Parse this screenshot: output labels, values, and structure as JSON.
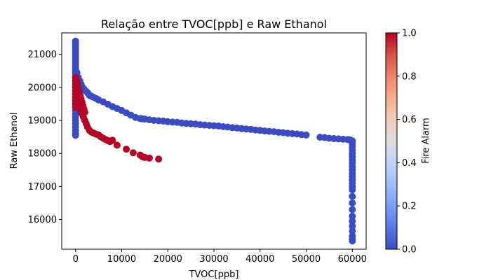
{
  "chart_data": {
    "type": "scatter",
    "title": "Relação entre TVOC[ppb] e Raw Ethanol",
    "xlabel": "TVOC[ppb]",
    "ylabel": "Raw Ethanol",
    "xlim": [
      -3000,
      63000
    ],
    "ylim": [
      15100,
      21650
    ],
    "x_ticks": [
      0,
      10000,
      20000,
      30000,
      40000,
      50000,
      60000
    ],
    "x_tick_labels": [
      "0",
      "10000",
      "20000",
      "30000",
      "40000",
      "50000",
      "60000"
    ],
    "y_ticks": [
      16000,
      17000,
      18000,
      19000,
      20000,
      21000
    ],
    "y_tick_labels": [
      "16000",
      "17000",
      "18000",
      "19000",
      "20000",
      "21000"
    ],
    "grid": false,
    "colorbar": {
      "label": "Fire Alarm",
      "range": [
        0,
        1
      ],
      "ticks": [
        0.0,
        0.2,
        0.4,
        0.6,
        0.8,
        1.0
      ],
      "tick_labels": [
        "0.0",
        "0.2",
        "0.4",
        "0.6",
        "0.8",
        "1.0"
      ],
      "colormap": "coolwarm",
      "low_color": "#3b4cc0",
      "high_color": "#b40426"
    },
    "series": [
      {
        "fire_alarm": 0,
        "color": "#3b4cc0",
        "x": [
          0,
          0,
          0,
          0,
          0,
          0,
          0,
          0,
          0,
          0,
          0,
          0,
          0,
          0,
          0,
          0,
          0,
          0,
          0,
          0,
          0,
          0,
          0,
          0,
          0,
          0,
          0,
          0,
          0,
          0,
          0,
          0,
          0,
          0,
          0,
          0,
          0,
          0,
          0,
          0,
          300,
          600,
          900,
          1200,
          1500,
          1800,
          2100,
          2400,
          2700,
          3000,
          3300,
          3600,
          3900,
          4500,
          5000,
          6000,
          7000,
          8000,
          9000,
          10000,
          11000,
          12000,
          13000,
          14000,
          14500,
          15000,
          16000,
          17000,
          18000,
          19000,
          20000,
          21000,
          22000,
          23000,
          24000,
          25000,
          26000,
          27000,
          28000,
          29000,
          30000,
          31000,
          32000,
          33000,
          34000,
          35000,
          36000,
          37000,
          38000,
          39000,
          40000,
          41000,
          42000,
          43000,
          44000,
          45000,
          46000,
          47000,
          48000,
          49000,
          50000,
          53000,
          54000,
          55000,
          56000,
          57000,
          58000,
          59000,
          59500,
          60000,
          60000,
          60000,
          60000,
          60000,
          60000,
          60000,
          60000,
          60000,
          60000,
          60000,
          60000,
          60000,
          60000,
          60000,
          60000,
          60000,
          60000,
          60000,
          60000,
          60000,
          60000,
          60000,
          60000,
          60000,
          60000
        ],
        "y": [
          21400,
          21300,
          21200,
          21100,
          21000,
          20900,
          20800,
          20700,
          20600,
          20500,
          20400,
          20300,
          20200,
          20100,
          20000,
          19900,
          19800,
          19700,
          19600,
          19500,
          19400,
          19300,
          19200,
          19100,
          19000,
          18900,
          18800,
          18700,
          18600,
          18550,
          21350,
          21250,
          21150,
          21050,
          20950,
          20850,
          20750,
          20650,
          20550,
          20450,
          20450,
          20300,
          20200,
          20100,
          20000,
          19950,
          19900,
          19870,
          19820,
          19760,
          19740,
          19720,
          19700,
          19660,
          19620,
          19560,
          19490,
          19420,
          19360,
          19300,
          19230,
          19160,
          19090,
          19060,
          19050,
          19040,
          19020,
          19000,
          18990,
          18980,
          18960,
          18950,
          18940,
          18920,
          18910,
          18900,
          18890,
          18870,
          18860,
          18850,
          18840,
          18830,
          18810,
          18800,
          18780,
          18770,
          18750,
          18740,
          18730,
          18710,
          18700,
          18680,
          18670,
          18660,
          18640,
          18630,
          18610,
          18600,
          18590,
          18570,
          18560,
          18490,
          18480,
          18460,
          18450,
          18440,
          18430,
          18420,
          18410,
          18380,
          18300,
          18100,
          17900,
          17700,
          17500,
          17300,
          17100,
          16900,
          16700,
          16500,
          16300,
          16100,
          15950,
          15800,
          15650,
          15500,
          15400,
          15350,
          18200,
          18000,
          17800,
          17600,
          17400,
          17200,
          17000
        ]
      },
      {
        "fire_alarm": 1,
        "color": "#b40426",
        "x": [
          0,
          0,
          0,
          0,
          0,
          0,
          0,
          0,
          0,
          0,
          200,
          400,
          600,
          800,
          1000,
          1200,
          1400,
          1600,
          1800,
          2000,
          500,
          800,
          1100,
          1400,
          1700,
          2000,
          2300,
          2600,
          3000,
          3500,
          4000,
          4500,
          5000,
          5500,
          6000,
          6500,
          7000,
          7500,
          8000,
          9000,
          11000,
          12500,
          14000,
          14500,
          15000,
          16000,
          18000
        ],
        "y": [
          20300,
          20200,
          20100,
          20000,
          19900,
          19800,
          19700,
          19600,
          19500,
          19400,
          20200,
          20100,
          19950,
          19850,
          19750,
          19650,
          19550,
          19450,
          19350,
          19250,
          19600,
          19450,
          19300,
          19200,
          19100,
          19000,
          18900,
          18800,
          18700,
          18640,
          18610,
          18580,
          18560,
          18500,
          18460,
          18420,
          18390,
          18360,
          18400,
          18250,
          18130,
          18020,
          17950,
          17900,
          17880,
          17860,
          17830
        ]
      }
    ]
  }
}
